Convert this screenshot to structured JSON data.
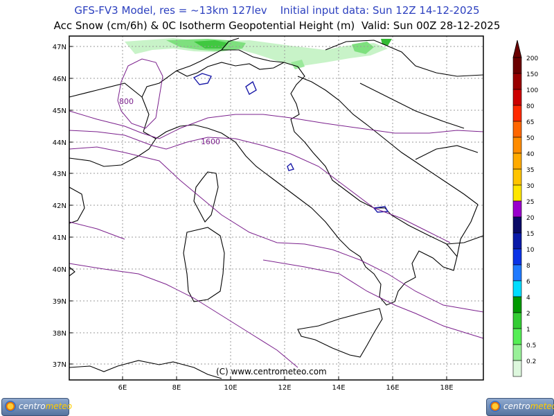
{
  "header": {
    "line1": "GFS-FV3 Model, res = ~13km 127lev    Initial input data: Sun 12Z 14-12-2025",
    "line2": "Acc Snow (cm/6h) & 0C Isotherm Geopotential Height (m)  Valid: Sun 00Z 28-12-2025"
  },
  "map": {
    "lon_labels": [
      "6E",
      "8E",
      "10E",
      "12E",
      "14E",
      "16E",
      "18E"
    ],
    "lat_labels": [
      "47N",
      "46N",
      "45N",
      "44N",
      "43N",
      "42N",
      "41N",
      "40N",
      "39N",
      "38N",
      "37N"
    ],
    "contour_labels": [
      "800",
      "1600"
    ],
    "watermark": "(C)  www.centrometeo.com",
    "contour_color": "#7a1f8c"
  },
  "legend": {
    "levels": [
      {
        "label": "200",
        "color": "#6b0000"
      },
      {
        "label": "150",
        "color": "#990000"
      },
      {
        "label": "100",
        "color": "#cc0000"
      },
      {
        "label": "80",
        "color": "#ff2a00"
      },
      {
        "label": "65",
        "color": "#ff6600"
      },
      {
        "label": "50",
        "color": "#ff8c00"
      },
      {
        "label": "40",
        "color": "#ffaa00"
      },
      {
        "label": "35",
        "color": "#ffc400"
      },
      {
        "label": "30",
        "color": "#ffe600"
      },
      {
        "label": "25",
        "color": "#9900cc"
      },
      {
        "label": "20",
        "color": "#0a0a66"
      },
      {
        "label": "15",
        "color": "#0a1aa8"
      },
      {
        "label": "10",
        "color": "#0a33e6"
      },
      {
        "label": "8",
        "color": "#1f7aff"
      },
      {
        "label": "6",
        "color": "#00ddff"
      },
      {
        "label": "4",
        "color": "#009900"
      },
      {
        "label": "2",
        "color": "#33cc33"
      },
      {
        "label": "1",
        "color": "#55ee55"
      },
      {
        "label": "0.5",
        "color": "#99f099"
      },
      {
        "label": "0.2",
        "color": "#ddf7dd"
      }
    ]
  },
  "logos": {
    "text_a": "centro",
    "text_b": "meteo"
  }
}
